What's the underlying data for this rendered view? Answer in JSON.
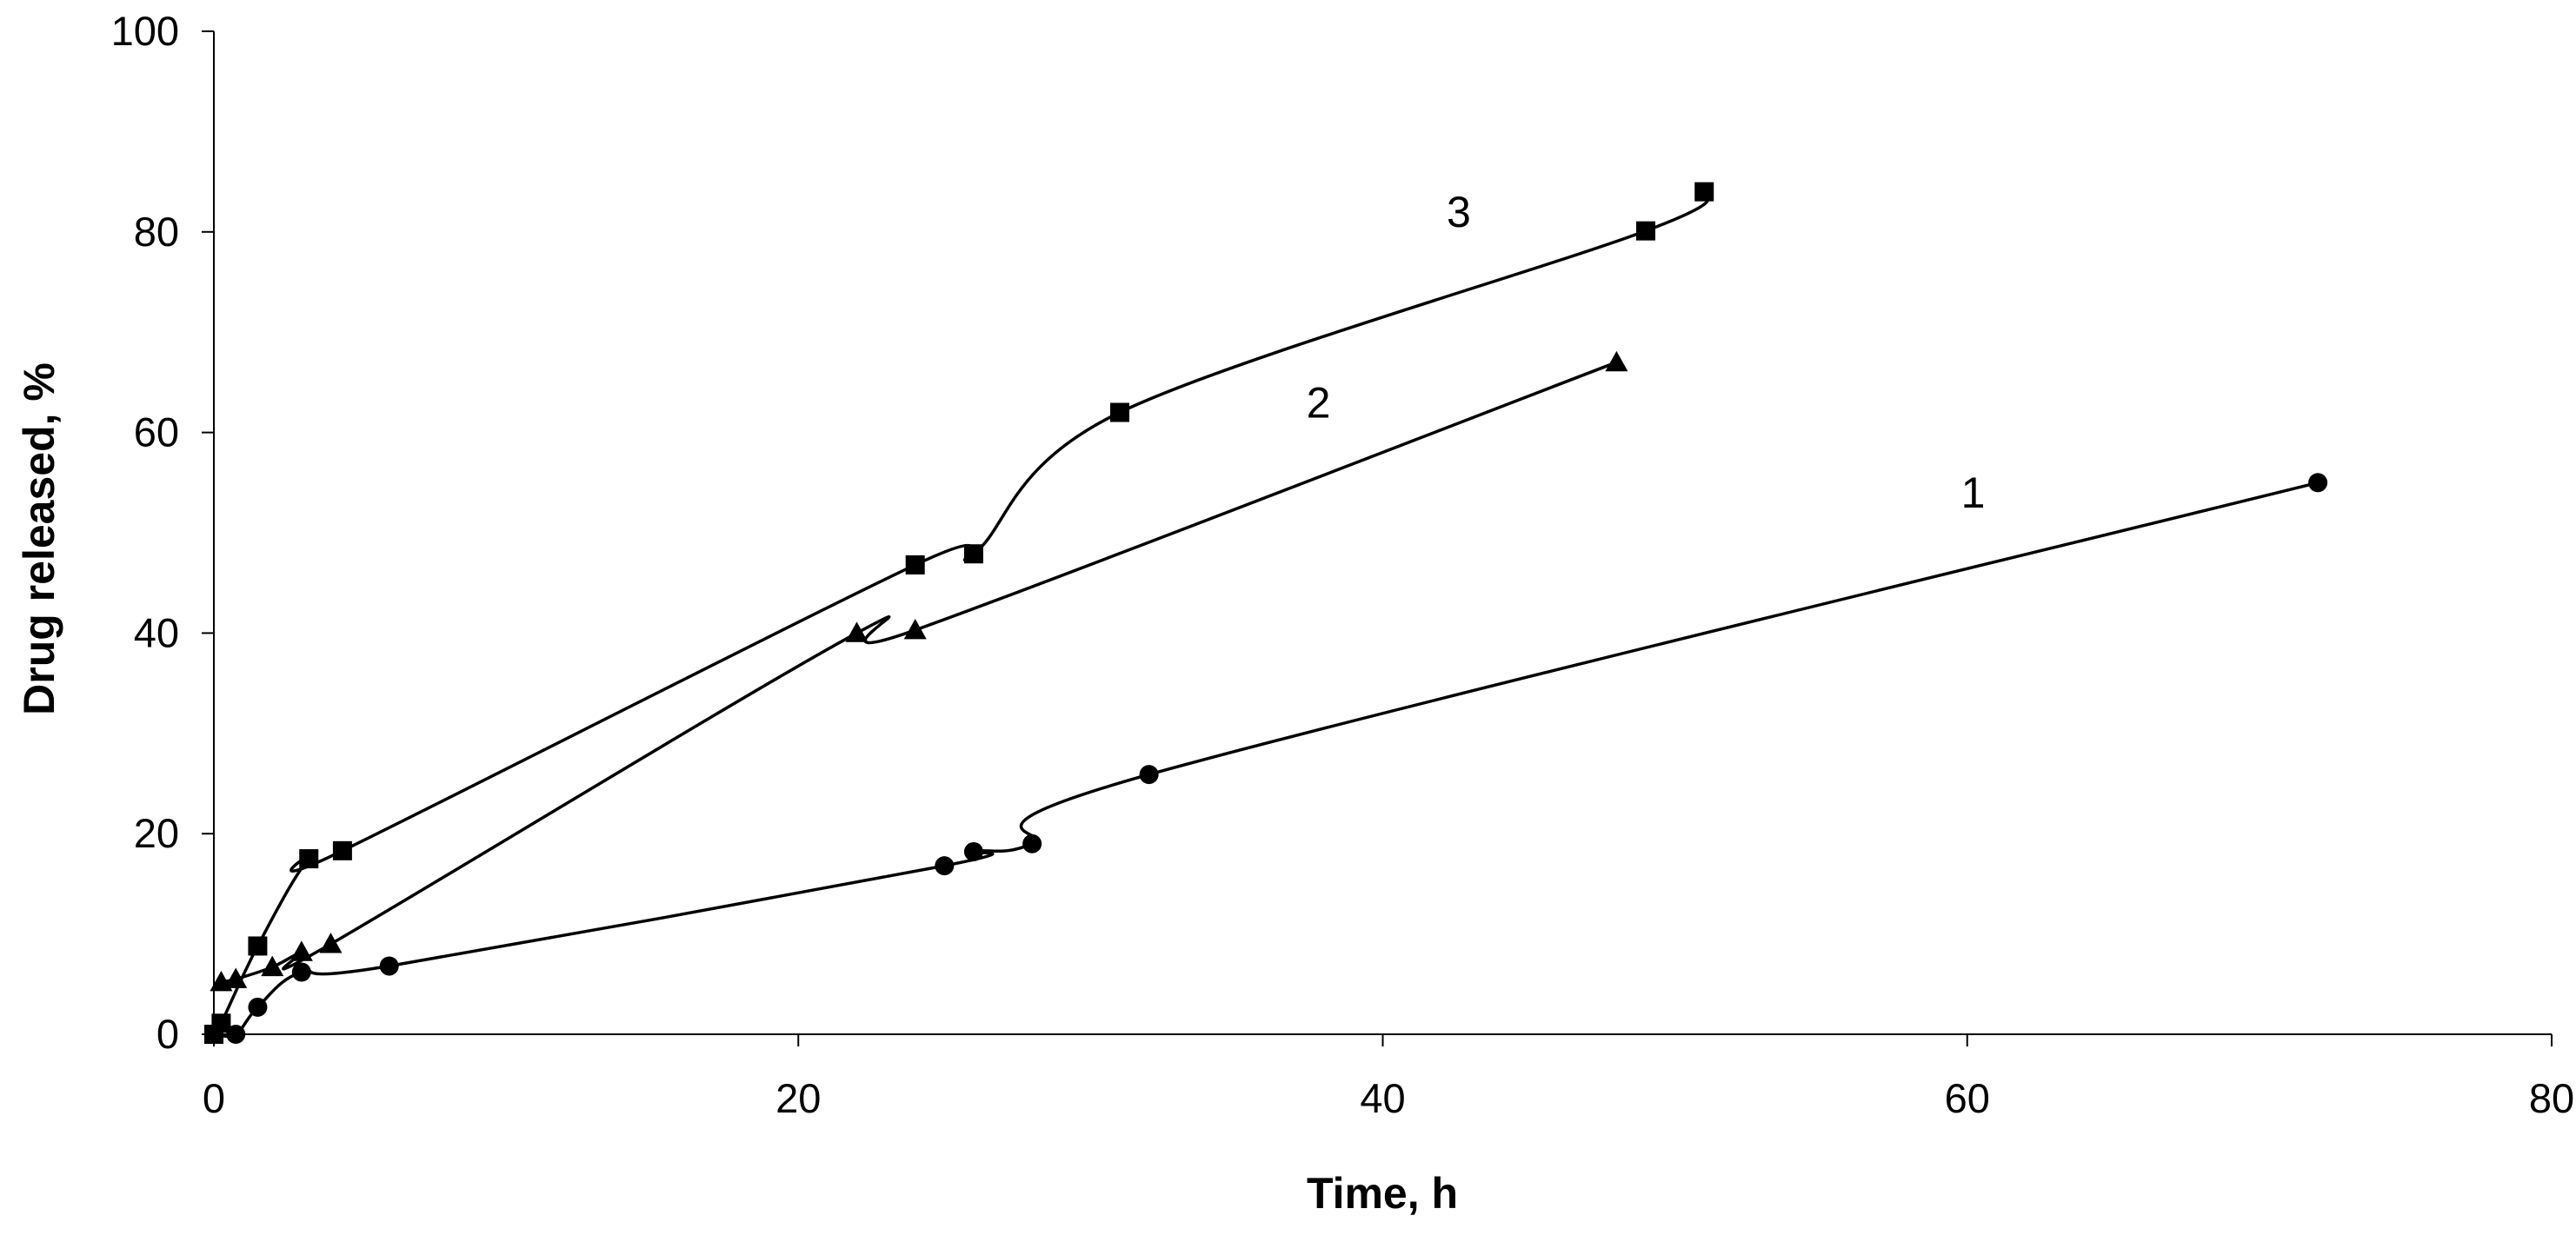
{
  "chart_data": {
    "type": "line",
    "title": "",
    "xlabel": "Time, h",
    "ylabel": "Drug released, %",
    "xlim": [
      0,
      80
    ],
    "ylim": [
      0,
      100
    ],
    "x_ticks": [
      "0",
      "20",
      "40",
      "60",
      "80"
    ],
    "y_ticks": [
      "0",
      "20",
      "40",
      "60",
      "80",
      "100"
    ],
    "grid": false,
    "legend": "none",
    "series": [
      {
        "label": "1",
        "marker": "circle",
        "x": [
          0,
          0.75,
          1.5,
          3,
          6,
          25,
          26,
          28,
          32,
          72
        ],
        "y": [
          0,
          0,
          2.7,
          6.2,
          6.8,
          16.8,
          18.2,
          19,
          25.9,
          55
        ]
      },
      {
        "label": "2",
        "marker": "triangle",
        "x": [
          0.25,
          0.75,
          2,
          3,
          4,
          22,
          24,
          48
        ],
        "y": [
          5.2,
          5.5,
          6.7,
          8.2,
          9,
          40,
          40.3,
          67
        ]
      },
      {
        "label": "3",
        "marker": "square",
        "x": [
          0,
          0.25,
          1.5,
          3.25,
          4.4,
          24,
          26,
          31,
          49,
          51
        ],
        "y": [
          0,
          1.1,
          8.8,
          17.5,
          18.3,
          46.8,
          47.9,
          62,
          80.1,
          84
        ]
      }
    ]
  }
}
